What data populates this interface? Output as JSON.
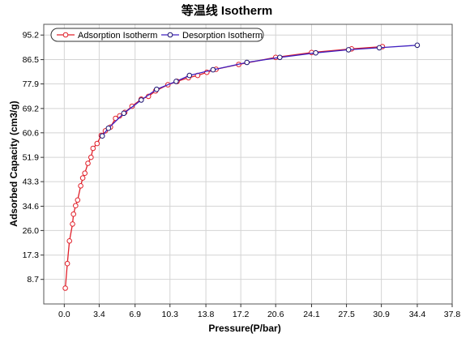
{
  "chart_data": {
    "type": "line",
    "title": "等温线 Isotherm",
    "xlabel": "Pressure(P/bar)",
    "ylabel": "Adsorbed Capacity (cm3/g)",
    "xlim": [
      -2.0,
      37.8
    ],
    "ylim": [
      0.0,
      99.0
    ],
    "x_ticks": [
      "0.0",
      "3.4",
      "6.9",
      "10.3",
      "13.8",
      "17.2",
      "20.6",
      "24.1",
      "27.5",
      "30.9",
      "34.4",
      "37.8"
    ],
    "y_ticks": [
      "8.7",
      "17.3",
      "26.0",
      "34.6",
      "43.3",
      "51.9",
      "60.6",
      "69.2",
      "77.9",
      "86.5",
      "95.2"
    ],
    "grid": true,
    "legend_position": "top-left",
    "series": [
      {
        "name": "Adsorption Isotherm",
        "color": "#e0202a",
        "line_color": "#e0202a",
        "x": [
          0.1,
          0.3,
          0.5,
          0.8,
          0.9,
          1.1,
          1.3,
          1.6,
          1.8,
          2.0,
          2.3,
          2.6,
          2.8,
          3.2,
          3.6,
          4.0,
          4.5,
          5.0,
          5.4,
          5.9,
          6.6,
          7.5,
          8.2,
          8.9,
          10.1,
          11.0,
          12.1,
          13.0,
          13.9,
          14.8,
          17.0,
          20.6,
          24.1,
          28.0,
          31.0
        ],
        "y": [
          5.6,
          14.3,
          22.3,
          28.3,
          31.8,
          34.8,
          36.8,
          41.8,
          44.6,
          46.3,
          49.8,
          51.9,
          55.1,
          56.8,
          59.7,
          61.3,
          62.6,
          65.7,
          66.6,
          67.8,
          70.0,
          72.5,
          73.5,
          75.4,
          77.6,
          78.8,
          80.1,
          80.9,
          82.0,
          83.1,
          84.8,
          87.3,
          89.0,
          90.3,
          91.1
        ]
      },
      {
        "name": "Desorption Isotherm",
        "color": "#1a1070",
        "line_color": "#4020c0",
        "x": [
          34.4,
          30.7,
          27.7,
          24.5,
          21.0,
          17.8,
          14.5,
          12.2,
          10.9,
          9.0,
          7.5,
          5.8,
          4.3,
          3.7
        ],
        "y": [
          91.6,
          90.7,
          90.0,
          88.9,
          87.3,
          85.5,
          82.9,
          80.9,
          78.8,
          76.0,
          72.2,
          67.5,
          62.2,
          59.5
        ]
      }
    ]
  }
}
